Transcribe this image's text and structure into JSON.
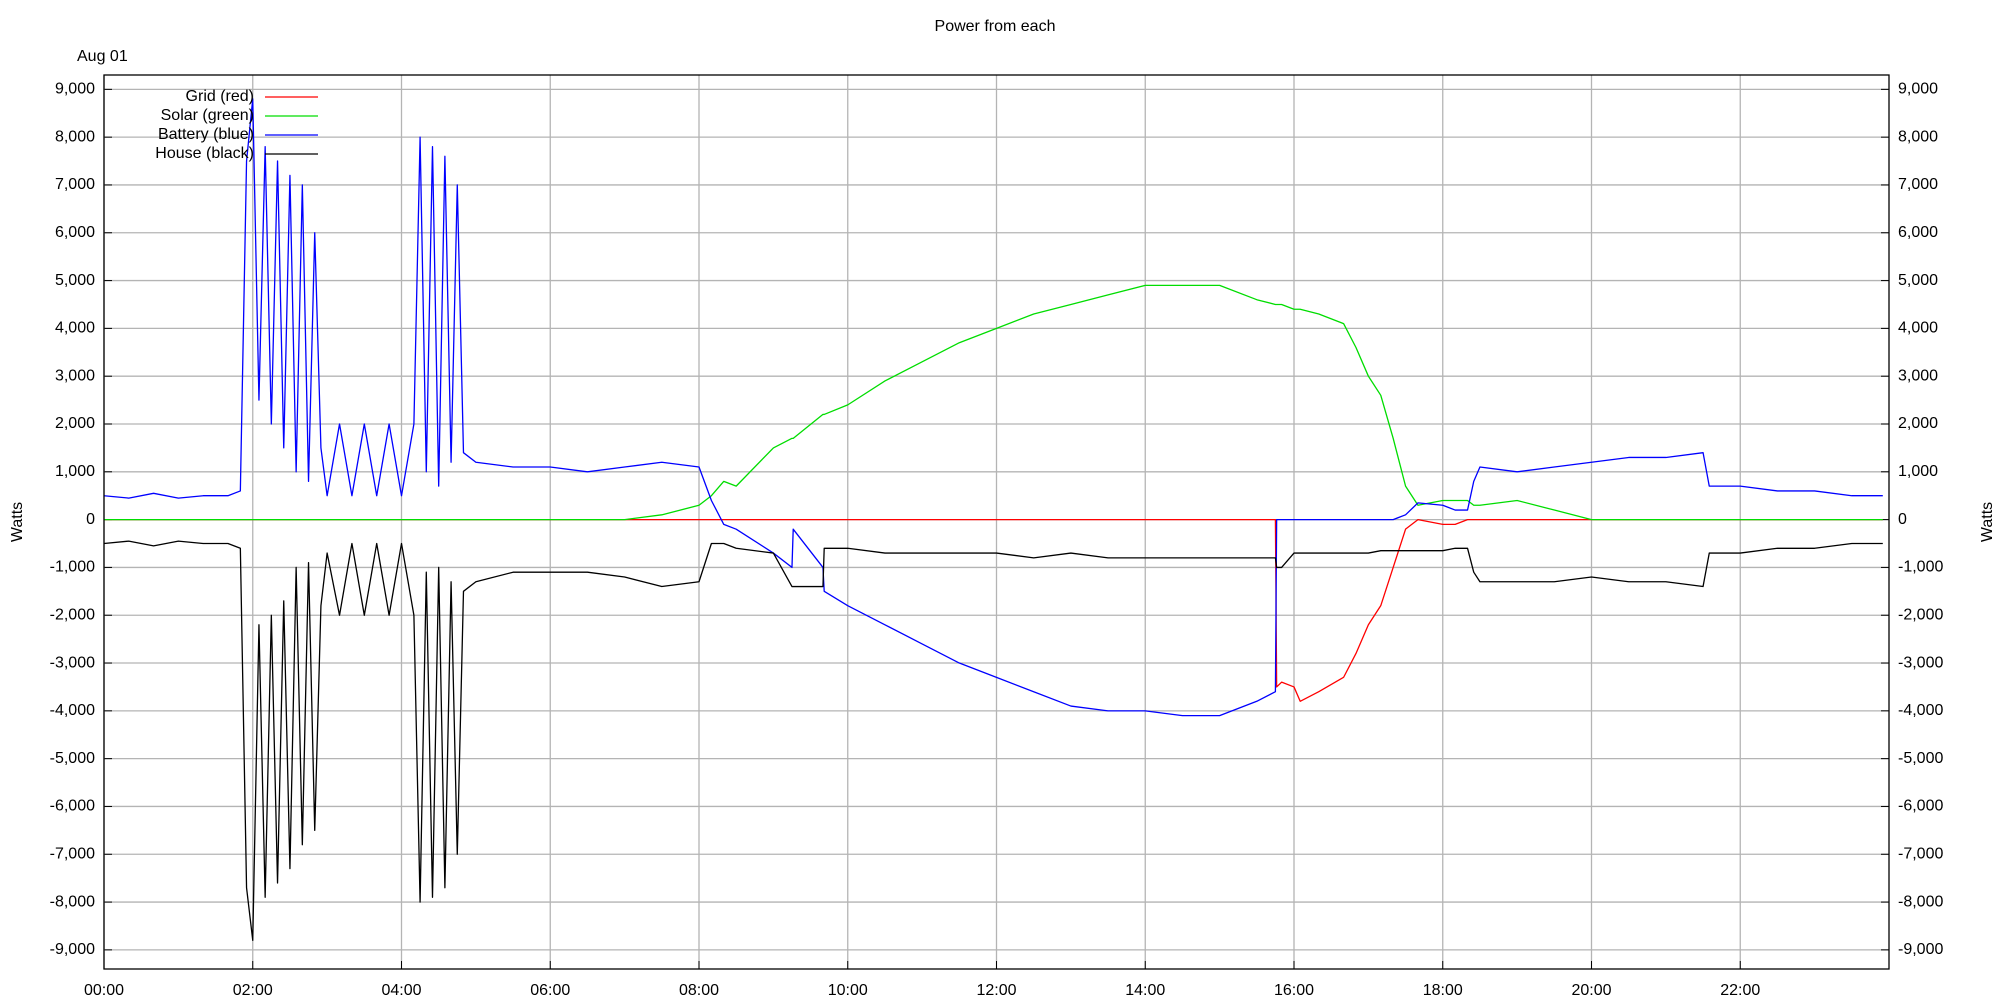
{
  "chart_data": {
    "type": "line",
    "title": "Power from each",
    "date_label": "Aug 01",
    "ylabel": "Watts",
    "y2label": "Watts",
    "xlim": [
      0,
      24
    ],
    "xticks": [
      {
        "value": 0,
        "label": "00:00"
      },
      {
        "value": 2,
        "label": "02:00"
      },
      {
        "value": 4,
        "label": "04:00"
      },
      {
        "value": 6,
        "label": "06:00"
      },
      {
        "value": 8,
        "label": "08:00"
      },
      {
        "value": 10,
        "label": "10:00"
      },
      {
        "value": 12,
        "label": "12:00"
      },
      {
        "value": 14,
        "label": "14:00"
      },
      {
        "value": 16,
        "label": "16:00"
      },
      {
        "value": 18,
        "label": "18:00"
      },
      {
        "value": 20,
        "label": "20:00"
      },
      {
        "value": 22,
        "label": "22:00"
      }
    ],
    "ylim": [
      -9400,
      9300
    ],
    "yticks": [
      {
        "value": 9000,
        "label": "9,000"
      },
      {
        "value": 8000,
        "label": "8,000"
      },
      {
        "value": 7000,
        "label": "7,000"
      },
      {
        "value": 6000,
        "label": "6,000"
      },
      {
        "value": 5000,
        "label": "5,000"
      },
      {
        "value": 4000,
        "label": "4,000"
      },
      {
        "value": 3000,
        "label": "3,000"
      },
      {
        "value": 2000,
        "label": "2,000"
      },
      {
        "value": 1000,
        "label": "1,000"
      },
      0,
      {
        "value": -1000,
        "label": "-1,000"
      },
      {
        "value": -2000,
        "label": "-2,000"
      },
      {
        "value": -3000,
        "label": "-3,000"
      },
      {
        "value": -4000,
        "label": "-4,000"
      },
      {
        "value": -5000,
        "label": "-5,000"
      },
      {
        "value": -6000,
        "label": "-6,000"
      },
      {
        "value": -7000,
        "label": "-7,000"
      },
      {
        "value": -8000,
        "label": "-8,000"
      },
      {
        "value": -9000,
        "label": "-9,000"
      }
    ],
    "y2lim": [
      -9400,
      9300
    ],
    "y2ticks": [
      {
        "value": 9000,
        "label": "9,000"
      },
      {
        "value": 8000,
        "label": "8,000"
      },
      {
        "value": 7000,
        "label": "7,000"
      },
      {
        "value": 6000,
        "label": "6,000"
      },
      {
        "value": 5000,
        "label": "5,000"
      },
      {
        "value": 4000,
        "label": "4,000"
      },
      {
        "value": 3000,
        "label": "3,000"
      },
      {
        "value": 2000,
        "label": "2,000"
      },
      {
        "value": 1000,
        "label": "1,000"
      },
      0,
      {
        "value": -1000,
        "label": "-1,000"
      },
      {
        "value": -2000,
        "label": "-2,000"
      },
      {
        "value": -3000,
        "label": "-3,000"
      },
      {
        "value": -4000,
        "label": "-4,000"
      },
      {
        "value": -5000,
        "label": "-5,000"
      },
      {
        "value": -6000,
        "label": "-6,000"
      },
      {
        "value": -7000,
        "label": "-7,000"
      },
      {
        "value": -8000,
        "label": "-8,000"
      },
      {
        "value": -9000,
        "label": "-9,000"
      }
    ],
    "grid": true,
    "legend": "top-left",
    "x": [
      "00:00",
      "00:20",
      "00:40",
      "01:00",
      "01:20",
      "01:40",
      "01:50",
      "01:55",
      "02:00",
      "02:05",
      "02:10",
      "02:15",
      "02:20",
      "02:25",
      "02:30",
      "02:35",
      "02:40",
      "02:45",
      "02:50",
      "02:55",
      "03:00",
      "03:10",
      "03:20",
      "03:30",
      "03:40",
      "03:50",
      "04:00",
      "04:10",
      "04:15",
      "04:20",
      "04:25",
      "04:30",
      "04:35",
      "04:40",
      "04:45",
      "04:50",
      "05:00",
      "05:30",
      "06:00",
      "06:30",
      "07:00",
      "07:30",
      "08:00",
      "08:10",
      "08:20",
      "08:30",
      "09:00",
      "09:15",
      "09:16",
      "09:40",
      "09:41",
      "10:00",
      "10:30",
      "11:00",
      "11:30",
      "12:00",
      "12:30",
      "13:00",
      "13:30",
      "14:00",
      "14:30",
      "15:00",
      "15:30",
      "15:45",
      "15:46",
      "15:50",
      "16:00",
      "16:05",
      "16:20",
      "16:40",
      "16:50",
      "17:00",
      "17:10",
      "17:20",
      "17:30",
      "17:40",
      "18:00",
      "18:10",
      "18:20",
      "18:25",
      "18:30",
      "19:00",
      "19:30",
      "20:00",
      "20:30",
      "21:00",
      "21:30",
      "21:35",
      "22:00",
      "22:30",
      "23:00",
      "23:30",
      "23:55"
    ],
    "series": [
      {
        "name": "Grid (red)",
        "color": "#ff0000",
        "values": [
          0,
          0,
          0,
          0,
          0,
          0,
          0,
          0,
          0,
          0,
          0,
          0,
          0,
          0,
          0,
          0,
          0,
          0,
          0,
          0,
          0,
          0,
          0,
          0,
          0,
          0,
          0,
          0,
          0,
          0,
          0,
          0,
          0,
          0,
          0,
          0,
          0,
          0,
          0,
          0,
          0,
          0,
          0,
          0,
          0,
          0,
          0,
          0,
          0,
          0,
          0,
          0,
          0,
          0,
          0,
          0,
          0,
          0,
          0,
          0,
          0,
          0,
          0,
          0,
          -3500,
          -3400,
          -3500,
          -3800,
          -3600,
          -3300,
          -2800,
          -2200,
          -1800,
          -1000,
          -200,
          0,
          -100,
          -100,
          0,
          0,
          0,
          0,
          0,
          0,
          0,
          0,
          0,
          0,
          0,
          0,
          0,
          0,
          0
        ]
      },
      {
        "name": "Solar (green)",
        "color": "#00dd00",
        "values": [
          0,
          0,
          0,
          0,
          0,
          0,
          0,
          0,
          0,
          0,
          0,
          0,
          0,
          0,
          0,
          0,
          0,
          0,
          0,
          0,
          0,
          0,
          0,
          0,
          0,
          0,
          0,
          0,
          0,
          0,
          0,
          0,
          0,
          0,
          0,
          0,
          0,
          0,
          0,
          0,
          0,
          100,
          300,
          500,
          800,
          700,
          1500,
          1700,
          1700,
          2200,
          2200,
          2400,
          2900,
          3300,
          3700,
          4000,
          4300,
          4500,
          4700,
          4900,
          4900,
          4900,
          4600,
          4500,
          4500,
          4500,
          4400,
          4400,
          4300,
          4100,
          3600,
          3000,
          2600,
          1700,
          700,
          300,
          400,
          400,
          400,
          300,
          300,
          400,
          200,
          0,
          0,
          0,
          0,
          0,
          0,
          0,
          0,
          0,
          0
        ]
      },
      {
        "name": "Battery (blue)",
        "color": "#0000ff",
        "values": [
          500,
          450,
          550,
          450,
          500,
          500,
          600,
          7500,
          8800,
          2500,
          7800,
          2000,
          7500,
          1500,
          7200,
          1000,
          7000,
          800,
          6000,
          1500,
          500,
          2000,
          500,
          2000,
          500,
          2000,
          500,
          2000,
          8000,
          1000,
          7800,
          700,
          7600,
          1200,
          7000,
          1400,
          1200,
          1100,
          1100,
          1000,
          1100,
          1200,
          1100,
          400,
          -100,
          -200,
          -700,
          -1000,
          -200,
          -1000,
          -1500,
          -1800,
          -2200,
          -2600,
          -3000,
          -3300,
          -3600,
          -3900,
          -4000,
          -4000,
          -4100,
          -4100,
          -3800,
          -3600,
          0,
          0,
          0,
          0,
          0,
          0,
          0,
          0,
          0,
          0,
          100,
          350,
          300,
          200,
          200,
          800,
          1100,
          1000,
          1100,
          1200,
          1300,
          1300,
          1400,
          700,
          700,
          600,
          600,
          500,
          500
        ]
      },
      {
        "name": "House (black)",
        "color": "#000000",
        "values": [
          -500,
          -450,
          -550,
          -450,
          -500,
          -500,
          -600,
          -7700,
          -8800,
          -2200,
          -7900,
          -2000,
          -7600,
          -1700,
          -7300,
          -1000,
          -6800,
          -900,
          -6500,
          -1800,
          -700,
          -2000,
          -500,
          -2000,
          -500,
          -2000,
          -500,
          -2000,
          -8000,
          -1100,
          -7900,
          -1000,
          -7700,
          -1300,
          -7000,
          -1500,
          -1300,
          -1100,
          -1100,
          -1100,
          -1200,
          -1400,
          -1300,
          -500,
          -500,
          -600,
          -700,
          -1400,
          -1400,
          -1400,
          -600,
          -600,
          -700,
          -700,
          -700,
          -700,
          -800,
          -700,
          -800,
          -800,
          -800,
          -800,
          -800,
          -800,
          -1000,
          -1000,
          -700,
          -700,
          -700,
          -700,
          -700,
          -700,
          -650,
          -650,
          -650,
          -650,
          -650,
          -600,
          -600,
          -1100,
          -1300,
          -1300,
          -1300,
          -1200,
          -1300,
          -1300,
          -1400,
          -700,
          -700,
          -600,
          -600,
          -500,
          -500
        ]
      }
    ]
  }
}
